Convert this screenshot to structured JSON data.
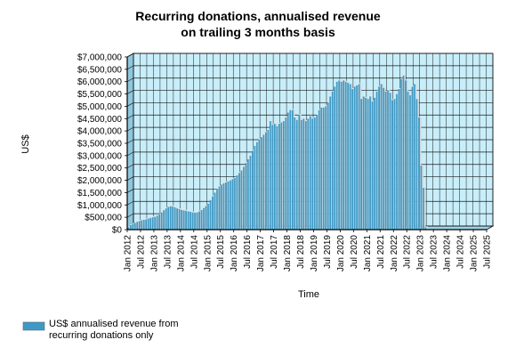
{
  "chart_data": {
    "type": "bar",
    "title": [
      "Recurring donations, annualised revenue",
      "on trailing 3 months basis"
    ],
    "xlabel": "Time",
    "ylabel": "US$",
    "ylim": [
      0,
      7000000
    ],
    "y_ticks": [
      {
        "value": 0,
        "label": "$0"
      },
      {
        "value": 500000,
        "label": "$500,000"
      },
      {
        "value": 1000000,
        "label": "$1,000,000"
      },
      {
        "value": 1500000,
        "label": "$1,500,000"
      },
      {
        "value": 2000000,
        "label": "$2,000,000"
      },
      {
        "value": 2500000,
        "label": "$2,500,000"
      },
      {
        "value": 3000000,
        "label": "$3,000,000"
      },
      {
        "value": 3500000,
        "label": "$3,500,000"
      },
      {
        "value": 4000000,
        "label": "$4,000,000"
      },
      {
        "value": 4500000,
        "label": "$4,500,000"
      },
      {
        "value": 5000000,
        "label": "$5,000,000"
      },
      {
        "value": 5500000,
        "label": "$5,500,000"
      },
      {
        "value": 6000000,
        "label": "$6,000,000"
      },
      {
        "value": 6500000,
        "label": "$6,500,000"
      },
      {
        "value": 7000000,
        "label": "$7,000,000"
      }
    ],
    "x_ticks": [
      "Jan 2012",
      "Jul 2012",
      "Jan 2013",
      "Jul 2013",
      "Jan 2014",
      "Jul 2014",
      "Jan 2015",
      "Jul 2015",
      "Jan 2016",
      "Jul 2016",
      "Jan 2017",
      "Jul 2017",
      "Jan 2018",
      "Jul 2018",
      "Jan 2019",
      "Jul 2019",
      "Jan 2020",
      "Jul 2020",
      "Jan 2021",
      "Jul 2021",
      "Jan 2022",
      "Jul 2022",
      "Jan 2023",
      "Jul 2023",
      "Jan 2024",
      "Jul 2024",
      "Jan 2025",
      "Jul 2025"
    ],
    "x_start": "Jan 2012",
    "grid": true,
    "legend_position": "bottom-left",
    "colors": {
      "bar": "#3d9ac7",
      "plot_bg": "#c8eefa",
      "grid": "#1a1a1a"
    },
    "series": [
      {
        "name": "US$ annualised revenue from recurring donations only",
        "values": [
          100000,
          180000,
          230000,
          280000,
          320000,
          350000,
          380000,
          400000,
          420000,
          450000,
          480000,
          500000,
          520000,
          570000,
          620000,
          700000,
          790000,
          860000,
          920000,
          950000,
          940000,
          900000,
          860000,
          830000,
          800000,
          780000,
          760000,
          740000,
          720000,
          700000,
          690000,
          700000,
          740000,
          800000,
          880000,
          960000,
          1050000,
          1200000,
          1350000,
          1500000,
          1650000,
          1750000,
          1830000,
          1880000,
          1920000,
          1960000,
          2000000,
          2050000,
          2100000,
          2200000,
          2300000,
          2400000,
          2550000,
          2700000,
          2850000,
          3000000,
          3200000,
          3400000,
          3550000,
          3650000,
          3750000,
          3850000,
          3950000,
          4050000,
          4400000,
          4250000,
          4300000,
          4200000,
          4300000,
          4350000,
          4400000,
          4550000,
          4750000,
          4850000,
          4850000,
          4550000,
          4450000,
          4650000,
          4450000,
          4500000,
          4400000,
          4500000,
          4600000,
          4500000,
          4550000,
          4650000,
          4850000,
          4950000,
          4950000,
          5000000,
          5150000,
          5400000,
          5600000,
          5800000,
          6000000,
          6050000,
          6000000,
          6050000,
          6000000,
          5950000,
          5900000,
          5700000,
          5800000,
          5850000,
          5900000,
          5300000,
          5400000,
          5350000,
          5300000,
          5400000,
          5200000,
          5350000,
          5600000,
          5800000,
          5900000,
          5750000,
          5600000,
          5650000,
          5550000,
          5250000,
          5300000,
          5500000,
          5700000,
          6100000,
          6250000,
          6050000,
          5600000,
          5450000,
          5800000,
          5900000,
          5300000,
          4550000,
          2600000,
          1700000,
          100000
        ]
      }
    ]
  }
}
